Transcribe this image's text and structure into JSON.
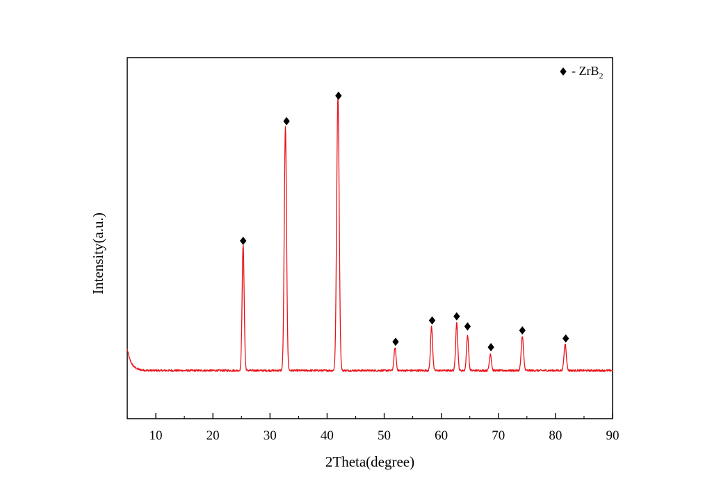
{
  "chart_data": {
    "type": "line",
    "title": "",
    "xlabel": "2Theta(degree)",
    "ylabel": "Intensity(a.u.)",
    "xlim": [
      5,
      90
    ],
    "ylim": [
      -70,
      470
    ],
    "x_ticks": [
      10,
      20,
      30,
      40,
      50,
      60,
      70,
      80,
      90
    ],
    "y_ticks_shown": false,
    "grid": false,
    "line_color": "#e8141a",
    "series": [
      {
        "name": "",
        "baseline": 2,
        "peaks": [
          {
            "x": 25.3,
            "y": 188,
            "w": 0.18
          },
          {
            "x": 32.7,
            "y": 364,
            "w": 0.2
          },
          {
            "x": 41.9,
            "y": 410,
            "w": 0.22
          },
          {
            "x": 51.9,
            "y": 34,
            "w": 0.18
          },
          {
            "x": 58.3,
            "y": 66,
            "w": 0.18
          },
          {
            "x": 62.7,
            "y": 72,
            "w": 0.18
          },
          {
            "x": 64.6,
            "y": 53,
            "w": 0.18
          },
          {
            "x": 68.6,
            "y": 25,
            "w": 0.18
          },
          {
            "x": 74.2,
            "y": 51,
            "w": 0.2
          },
          {
            "x": 81.7,
            "y": 40,
            "w": 0.2
          }
        ]
      }
    ],
    "markers": {
      "symbol": "diamond",
      "positions": [
        {
          "x": 25.3,
          "y": 196
        },
        {
          "x": 32.9,
          "y": 375
        },
        {
          "x": 42.0,
          "y": 413
        },
        {
          "x": 52.0,
          "y": 45
        },
        {
          "x": 58.4,
          "y": 77
        },
        {
          "x": 62.7,
          "y": 83
        },
        {
          "x": 64.6,
          "y": 68
        },
        {
          "x": 68.7,
          "y": 37
        },
        {
          "x": 74.2,
          "y": 62
        },
        {
          "x": 81.8,
          "y": 50
        }
      ]
    },
    "legend": {
      "placement": "top-right",
      "symbol": "diamond",
      "text": "- ZrB",
      "subscript": "2"
    }
  }
}
